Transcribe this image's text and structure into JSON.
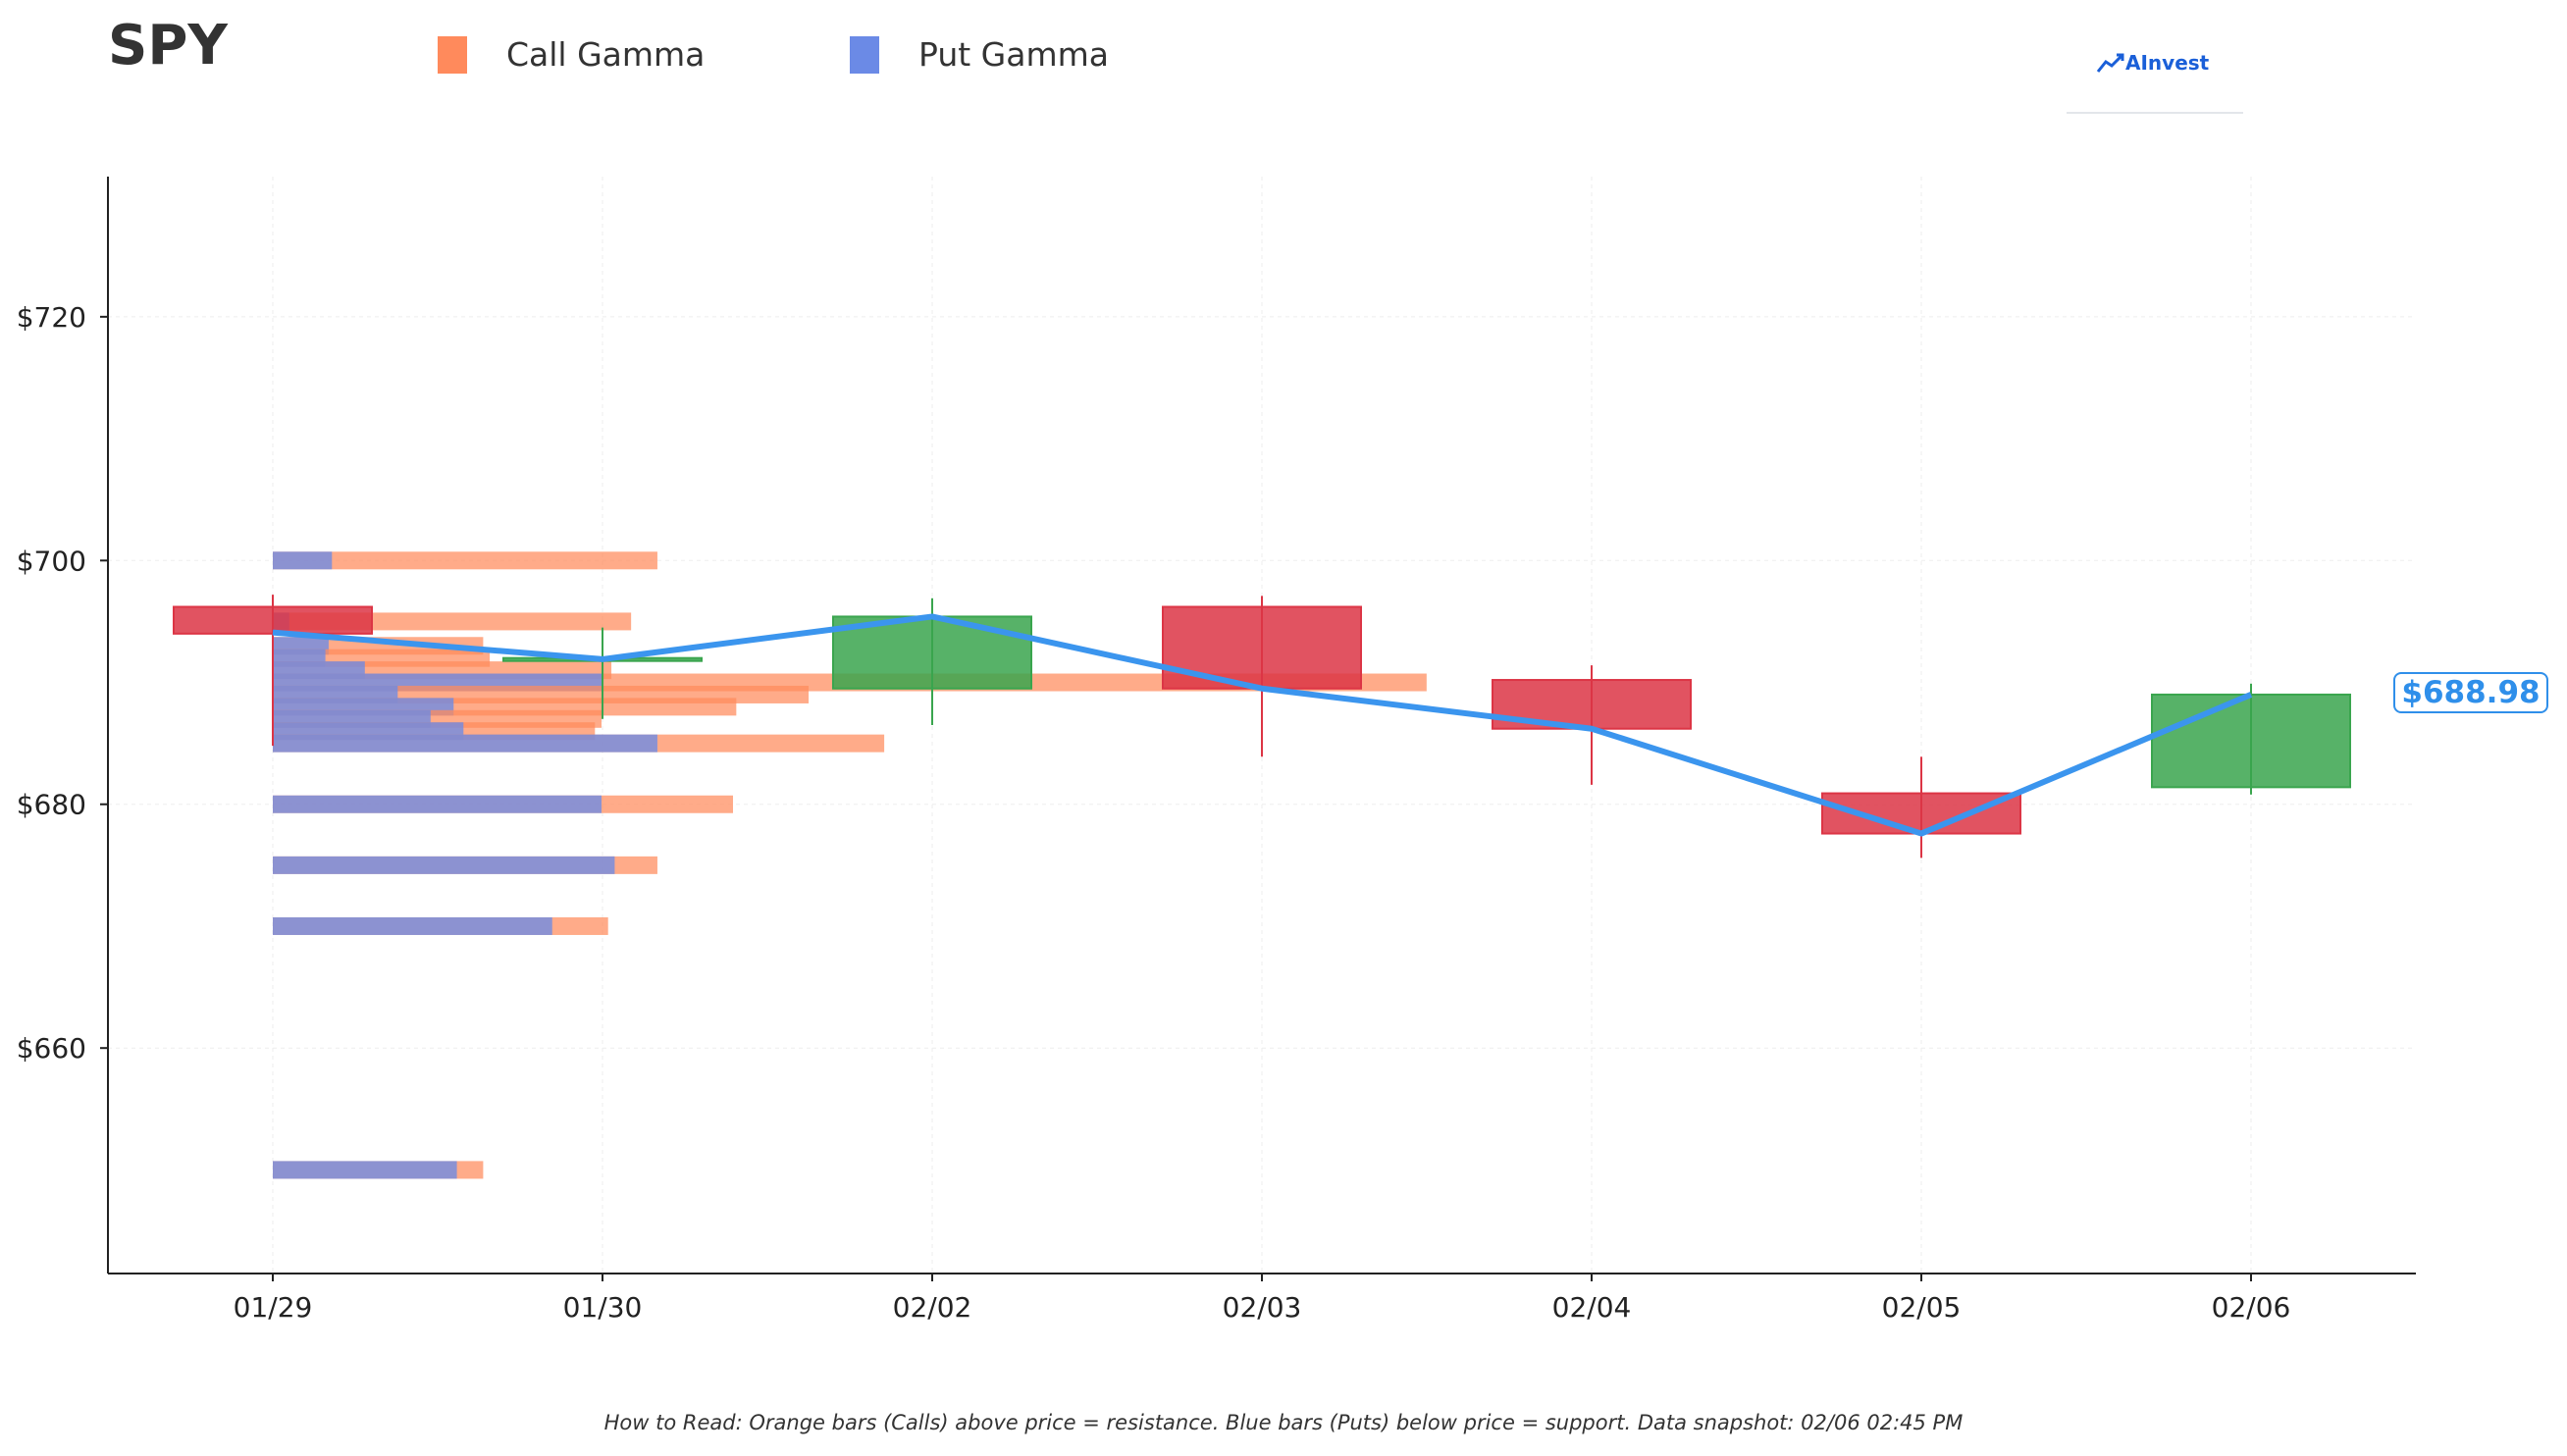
{
  "header": {
    "ticker": "SPY",
    "brand": "AInvest"
  },
  "legend": {
    "call_label": "Call Gamma",
    "put_label": "Put Gamma",
    "call_color": "#ff8a5c",
    "put_color": "#6b8ae6"
  },
  "footer": {
    "note": "How to Read: Orange bars (Calls) above price = resistance. Blue bars (Puts) below price = support. Data snapshot: 02/06 02:45 PM"
  },
  "price_tag": "$688.98",
  "chart_data": {
    "type": "candlestick",
    "categories": [
      "01/29",
      "01/30",
      "02/02",
      "02/03",
      "02/04",
      "02/05",
      "02/06"
    ],
    "ylim": [
      641.5,
      731.5
    ],
    "yticks": [
      660,
      680,
      700,
      720
    ],
    "ytick_labels": [
      "$660",
      "$680",
      "$700",
      "$720"
    ],
    "grid": true,
    "colors": {
      "up": "#3aa54e",
      "down": "#dc3545",
      "line": "#3b95ee"
    },
    "candles": [
      {
        "date": "01/29",
        "open": 696.2,
        "close": 694.0,
        "high": 697.2,
        "low": 684.8
      },
      {
        "date": "01/30",
        "open": 692.0,
        "close": 692.0,
        "high": 694.5,
        "low": 687.0
      },
      {
        "date": "02/02",
        "open": 689.5,
        "close": 695.4,
        "high": 696.9,
        "low": 686.5
      },
      {
        "date": "02/03",
        "open": 696.2,
        "close": 689.5,
        "high": 697.1,
        "low": 683.9
      },
      {
        "date": "02/04",
        "open": 690.2,
        "close": 686.2,
        "high": 691.4,
        "low": 681.6
      },
      {
        "date": "02/05",
        "open": 680.9,
        "close": 677.6,
        "high": 683.9,
        "low": 675.6
      },
      {
        "date": "02/06",
        "open": 681.4,
        "close": 689.0,
        "high": 689.9,
        "low": 680.8
      }
    ],
    "close_line": [
      694.1,
      691.9,
      695.4,
      689.5,
      686.2,
      677.6,
      689.0
    ],
    "gamma_levels": [
      {
        "strike": 700,
        "put": 0.18,
        "call": 0.99
      },
      {
        "strike": 695,
        "put": 0.05,
        "call": 1.04
      },
      {
        "strike": 693,
        "put": 0.17,
        "call": 0.47
      },
      {
        "strike": 692,
        "put": 0.16,
        "call": 0.5
      },
      {
        "strike": 691,
        "put": 0.28,
        "call": 0.75
      },
      {
        "strike": 690,
        "put": 1.0,
        "call": 2.51
      },
      {
        "strike": 689,
        "put": 0.38,
        "call": 1.25
      },
      {
        "strike": 688,
        "put": 0.55,
        "call": 0.86
      },
      {
        "strike": 687,
        "put": 0.48,
        "call": 0.52
      },
      {
        "strike": 686,
        "put": 0.58,
        "call": 0.4
      },
      {
        "strike": 685,
        "put": 1.17,
        "call": 0.69
      },
      {
        "strike": 680,
        "put": 1.0,
        "call": 0.4
      },
      {
        "strike": 675,
        "put": 1.04,
        "call": 0.13
      },
      {
        "strike": 670,
        "put": 0.85,
        "call": 0.17
      },
      {
        "strike": 650,
        "put": 0.56,
        "call": 0.08
      }
    ]
  }
}
